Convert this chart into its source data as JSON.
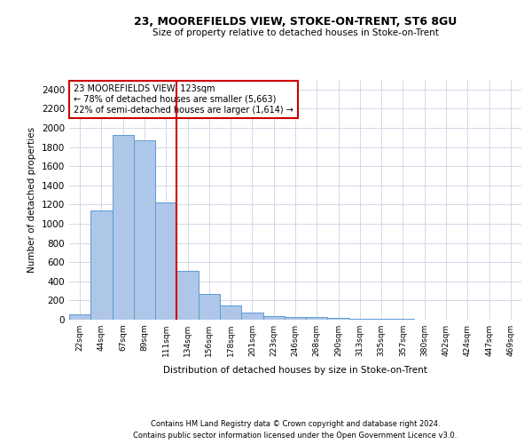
{
  "title1": "23, MOOREFIELDS VIEW, STOKE-ON-TRENT, ST6 8GU",
  "title2": "Size of property relative to detached houses in Stoke-on-Trent",
  "xlabel": "Distribution of detached houses by size in Stoke-on-Trent",
  "ylabel": "Number of detached properties",
  "footer1": "Contains HM Land Registry data © Crown copyright and database right 2024.",
  "footer2": "Contains public sector information licensed under the Open Government Licence v3.0.",
  "annotation_line1": "23 MOOREFIELDS VIEW: 123sqm",
  "annotation_line2": "← 78% of detached houses are smaller (5,663)",
  "annotation_line3": "22% of semi-detached houses are larger (1,614) →",
  "bar_color": "#aec6e8",
  "bar_edge_color": "#5b9bd5",
  "vline_color": "#cc0000",
  "annotation_box_color": "#cc0000",
  "grid_color": "#d0d8e8",
  "categories": [
    "22sqm",
    "44sqm",
    "67sqm",
    "89sqm",
    "111sqm",
    "134sqm",
    "156sqm",
    "178sqm",
    "201sqm",
    "223sqm",
    "246sqm",
    "268sqm",
    "290sqm",
    "313sqm",
    "335sqm",
    "357sqm",
    "380sqm",
    "402sqm",
    "424sqm",
    "447sqm",
    "469sqm"
  ],
  "values": [
    55,
    1140,
    1930,
    1870,
    1220,
    510,
    265,
    150,
    75,
    35,
    30,
    30,
    15,
    5,
    10,
    5,
    0,
    2,
    1,
    1,
    3
  ],
  "ylim": [
    0,
    2500
  ],
  "yticks": [
    0,
    200,
    400,
    600,
    800,
    1000,
    1200,
    1400,
    1600,
    1800,
    2000,
    2200,
    2400
  ],
  "vline_x": 4.5
}
